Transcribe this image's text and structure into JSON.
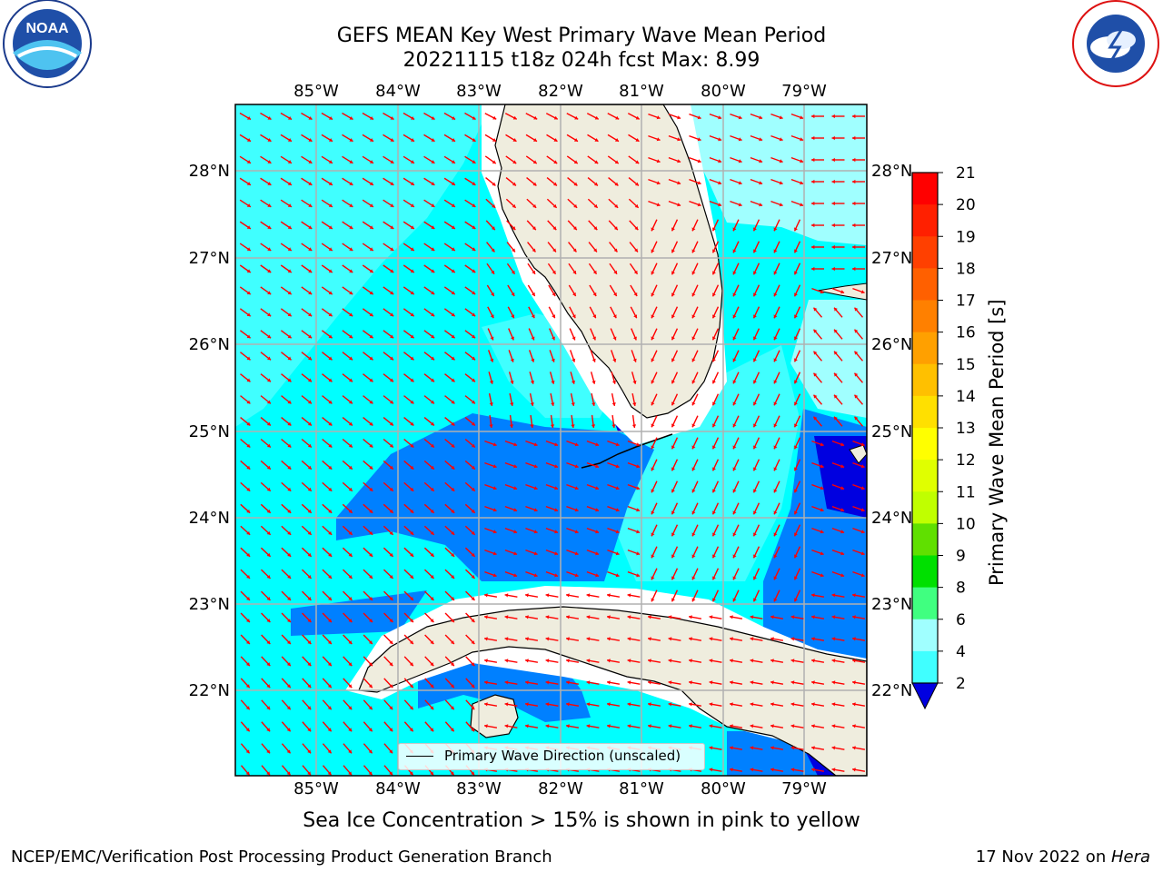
{
  "title": {
    "line1": "GEFS MEAN Key West Primary Wave Mean Period",
    "line2": "20221115 t18z 024h fcst   Max: 8.99"
  },
  "logos": {
    "left": {
      "icon": "noaa-logo",
      "text": "NOAA"
    },
    "right": {
      "icon": "nws-logo",
      "text": "NATIONAL WEATHER SERVICE"
    }
  },
  "map": {
    "lon_labels": [
      "85°W",
      "84°W",
      "83°W",
      "82°W",
      "81°W",
      "80°W",
      "79°W"
    ],
    "lat_labels": [
      "28°N",
      "27°N",
      "26°N",
      "25°N",
      "24°N",
      "23°N",
      "22°N"
    ],
    "land_color": "#efedde",
    "arrow_color": "#ff0000",
    "grid": true
  },
  "legend": {
    "label": "Primary Wave Direction (unscaled)"
  },
  "colorbar": {
    "title": "Primary Wave Mean Period [s]",
    "ticks": [
      "21",
      "20",
      "19",
      "18",
      "17",
      "16",
      "15",
      "14",
      "13",
      "12",
      "11",
      "10",
      "9",
      "8",
      "6",
      "4",
      "2"
    ],
    "colors": [
      "#ff0000",
      "#ff2000",
      "#ff4000",
      "#ff6000",
      "#ff8000",
      "#ffa000",
      "#ffc000",
      "#ffe000",
      "#ffff00",
      "#e0ff00",
      "#c0ff00",
      "#60e000",
      "#00e000",
      "#40ff80",
      "#a0ffff",
      "#40ffff",
      "#00ffff",
      "#0080ff",
      "#0000e0"
    ]
  },
  "note": "Sea Ice Concentration > 15% is shown in pink to yellow",
  "footer": {
    "left": "NCEP/EMC/Verification Post Processing Product Generation Branch",
    "right_prefix": "17 Nov 2022 on ",
    "right_host": "Hera"
  }
}
